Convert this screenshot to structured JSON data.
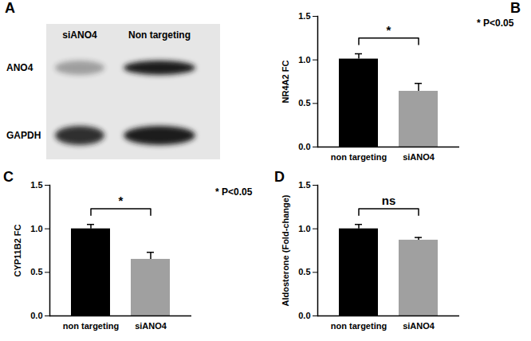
{
  "blot": {
    "panel": "A",
    "lanes": [
      "siANO4",
      "Non targeting"
    ],
    "rows": [
      "ANO4",
      "GAPDH"
    ],
    "band_intensity": [
      [
        0.35,
        1.0
      ],
      [
        0.9,
        1.0
      ]
    ]
  },
  "chart_data": [
    {
      "type": "bar",
      "panel": "B",
      "categories": [
        "non targeting",
        "siANO4"
      ],
      "values": [
        1.01,
        0.64
      ],
      "errors": [
        0.06,
        0.09
      ],
      "colors": [
        "#000000",
        "#a0a0a0"
      ],
      "y_label": "NR4A2 FC",
      "ylim": [
        0,
        1.5
      ],
      "yticks": [
        {
          "value": 0,
          "label": "0.0"
        },
        {
          "value": 0.5,
          "label": "0.5"
        },
        {
          "value": 1,
          "label": "1.0"
        },
        {
          "value": 1.5,
          "label": "1.5"
        }
      ],
      "bracket_label": "*",
      "annotation": "* P<0.05"
    },
    {
      "type": "bar",
      "panel": "C",
      "categories": [
        "non targeting",
        "siANO4"
      ],
      "values": [
        1.0,
        0.65
      ],
      "errors": [
        0.05,
        0.08
      ],
      "colors": [
        "#000000",
        "#a0a0a0"
      ],
      "y_label": "CYP11B2 FC",
      "ylim": [
        0,
        1.5
      ],
      "yticks": [
        {
          "value": 0,
          "label": "0.0"
        },
        {
          "value": 0.5,
          "label": "0.5"
        },
        {
          "value": 1,
          "label": "1.0"
        },
        {
          "value": 1.5,
          "label": "1.5"
        }
      ],
      "bracket_label": "*",
      "annotation": "* P<0.05"
    },
    {
      "type": "bar",
      "panel": "D",
      "categories": [
        "non targeting",
        "siANO4"
      ],
      "values": [
        1.0,
        0.87
      ],
      "errors": [
        0.05,
        0.03
      ],
      "colors": [
        "#000000",
        "#a0a0a0"
      ],
      "y_label": "Aldosterone (Fold-change)",
      "ylim": [
        0,
        1.5
      ],
      "yticks": [
        {
          "value": 0,
          "label": "0.0"
        },
        {
          "value": 0.5,
          "label": "0.5"
        },
        {
          "value": 1,
          "label": "1.0"
        },
        {
          "value": 1.5,
          "label": "1.5"
        }
      ],
      "bracket_label": "ns"
    }
  ]
}
